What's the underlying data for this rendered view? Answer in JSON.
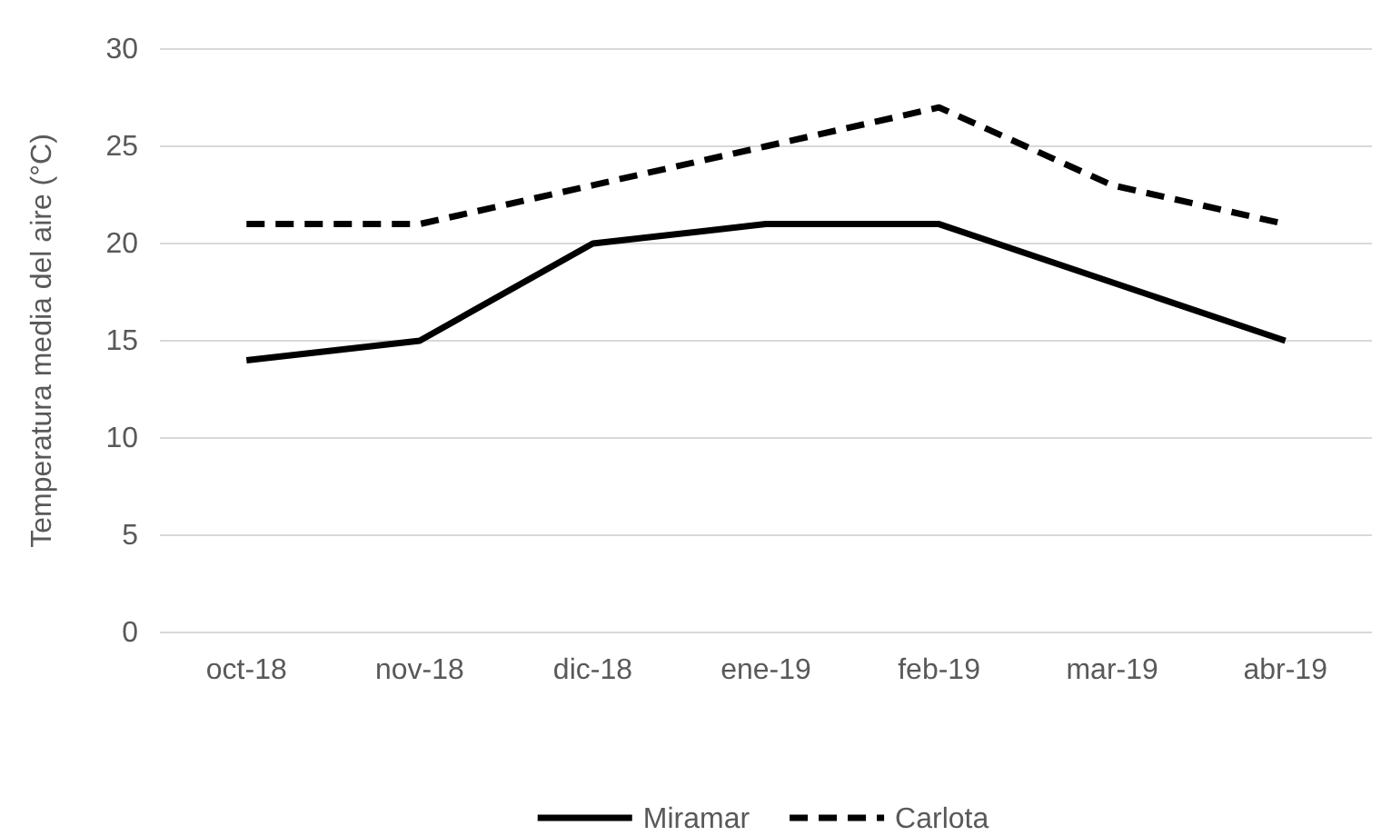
{
  "chart_data": {
    "type": "line",
    "ylabel": "Temperatura media del aire (°C)",
    "categories": [
      "oct-18",
      "nov-18",
      "dic-18",
      "ene-19",
      "feb-19",
      "mar-19",
      "abr-19"
    ],
    "series": [
      {
        "name": "Miramar",
        "color": "#000000",
        "line_style": "solid",
        "values": [
          14,
          15,
          20,
          21,
          21,
          18,
          15
        ]
      },
      {
        "name": "Carlota",
        "color": "#000000",
        "line_style": "dashed",
        "values": [
          21,
          21,
          23,
          25,
          27,
          23,
          21
        ]
      }
    ],
    "ylim": [
      0,
      30
    ],
    "yticks": [
      0,
      5,
      10,
      15,
      20,
      25,
      30
    ],
    "grid": "y",
    "legend": "bottom",
    "marker": "none"
  }
}
